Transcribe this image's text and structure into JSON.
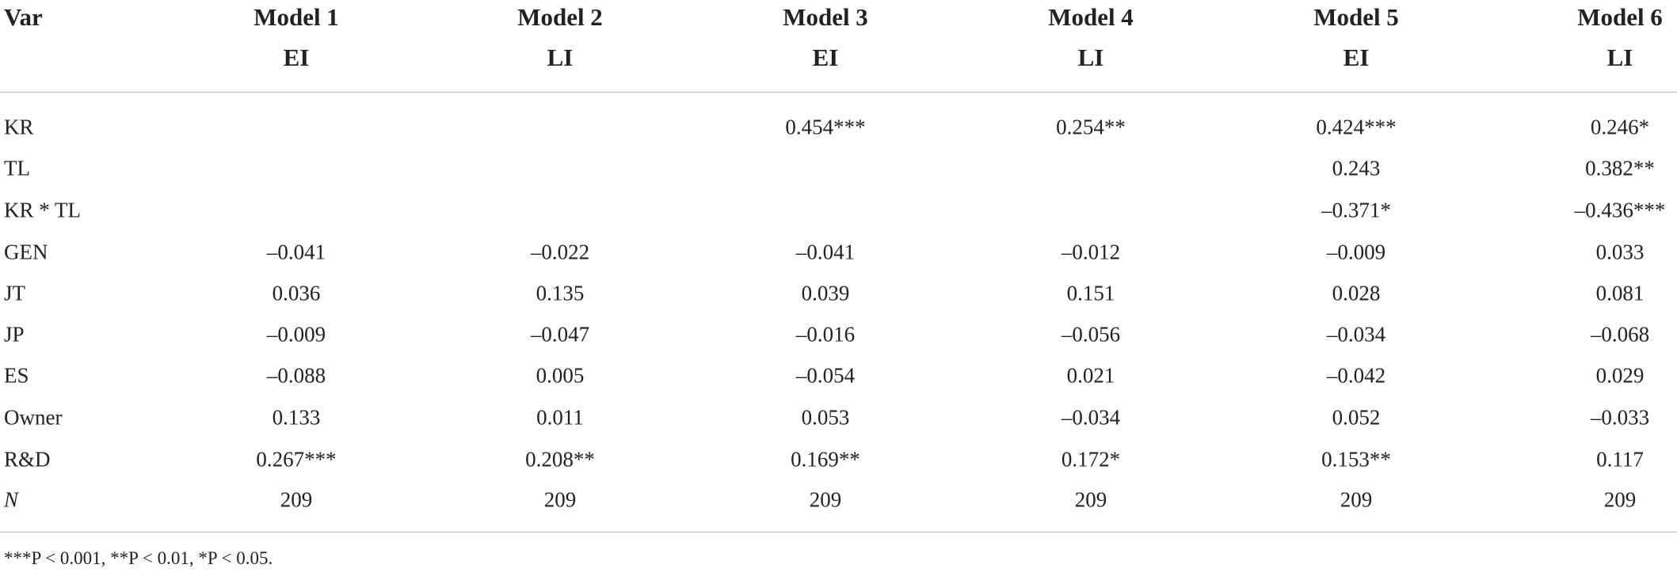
{
  "table": {
    "header": {
      "var": "Var",
      "models": [
        "Model 1",
        "Model 2",
        "Model 3",
        "Model 4",
        "Model 5",
        "Model 6"
      ],
      "dependents": [
        "EI",
        "LI",
        "EI",
        "LI",
        "EI",
        "LI"
      ]
    },
    "rows": [
      {
        "label": "KR",
        "cells": [
          null,
          null,
          "0.454***",
          "0.254**",
          "0.424***",
          "0.246*"
        ]
      },
      {
        "label": "TL",
        "cells": [
          null,
          null,
          null,
          null,
          "0.243",
          "0.382**"
        ]
      },
      {
        "label": "KR * TL",
        "cells": [
          null,
          null,
          null,
          null,
          "–0.371*",
          "–0.436***"
        ]
      },
      {
        "label": "GEN",
        "cells": [
          "–0.041",
          "–0.022",
          "–0.041",
          "–0.012",
          "–0.009",
          "0.033"
        ]
      },
      {
        "label": "JT",
        "cells": [
          "0.036",
          "0.135",
          "0.039",
          "0.151",
          "0.028",
          "0.081"
        ]
      },
      {
        "label": "JP",
        "cells": [
          "–0.009",
          "–0.047",
          "–0.016",
          "–0.056",
          "–0.034",
          "–0.068"
        ]
      },
      {
        "label": "ES",
        "cells": [
          "–0.088",
          "0.005",
          "–0.054",
          "0.021",
          "–0.042",
          "0.029"
        ]
      },
      {
        "label": "Owner",
        "cells": [
          "0.133",
          "0.011",
          "0.053",
          "–0.034",
          "0.052",
          "–0.033"
        ]
      },
      {
        "label": "R&D",
        "cells": [
          "0.267***",
          "0.208**",
          "0.169**",
          "0.172*",
          "0.153**",
          "0.117"
        ]
      },
      {
        "label": "N",
        "cells": [
          "209",
          "209",
          "209",
          "209",
          "209",
          "209"
        ]
      }
    ],
    "footnote": "***P < 0.001, **P < 0.01, *P < 0.05."
  }
}
